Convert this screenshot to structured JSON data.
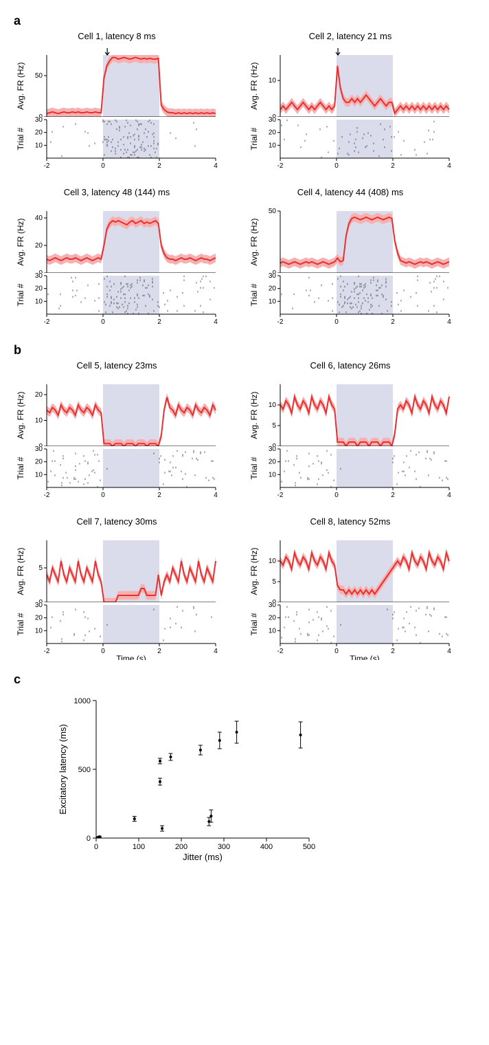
{
  "colors": {
    "line": "#e73030",
    "line_shade": "#f7b0b0",
    "stim": "#dadbeb",
    "raster": "#333333",
    "axis": "#000000",
    "grid": "#e0e0e0",
    "bg": "#ffffff"
  },
  "time_axis": {
    "xmin": -2,
    "xmax": 4,
    "ticks": [
      -2,
      0,
      2,
      4
    ]
  },
  "trials": {
    "ymin": 0,
    "ymax": 30,
    "ticks": [
      10,
      20,
      30
    ]
  },
  "stim_window": {
    "start": 0,
    "end": 2
  },
  "panel_a_label": "a",
  "panel_b_label": "b",
  "panel_c_label": "c",
  "xlabel_time": "Time (s)",
  "ylabel_fr": "Avg. FR (Hz)",
  "ylabel_trial": "Trial #",
  "cells_a": [
    {
      "title": "Cell 1, latency 8 ms",
      "ymax": 75,
      "yticks": [
        0,
        50
      ],
      "arrow_at": 0.15,
      "psth_y": [
        4,
        5,
        6,
        5,
        4,
        5,
        6,
        5,
        5,
        6,
        5,
        6,
        5,
        5,
        6,
        5,
        5,
        6,
        5,
        5,
        47,
        62,
        68,
        72,
        72,
        70,
        71,
        72,
        71,
        70,
        71,
        72,
        71,
        70,
        71,
        70,
        71,
        70,
        70,
        71,
        14,
        9,
        6,
        5,
        5,
        4,
        5,
        4,
        5,
        4,
        5,
        4,
        5,
        4,
        5,
        4,
        5,
        4,
        5,
        4
      ],
      "raster_density_pre": 0.06,
      "raster_density_stim": 0.95,
      "raster_density_post": 0.06
    },
    {
      "title": "Cell 2, latency 21 ms",
      "ymax": 17,
      "yticks": [
        0,
        10
      ],
      "arrow_at": 0.05,
      "psth_y": [
        2,
        3,
        2,
        3,
        4,
        3,
        2,
        3,
        4,
        3,
        2,
        3,
        2,
        3,
        4,
        3,
        2,
        3,
        2,
        3,
        14,
        8,
        5,
        4,
        4,
        5,
        4,
        5,
        4,
        5,
        6,
        5,
        4,
        3,
        4,
        5,
        4,
        3,
        4,
        4,
        1,
        2,
        3,
        2,
        3,
        2,
        3,
        2,
        3,
        2,
        3,
        2,
        3,
        2,
        3,
        2,
        3,
        2,
        3,
        2
      ],
      "raster_density_pre": 0.1,
      "raster_density_stim": 0.22,
      "raster_density_post": 0.1
    },
    {
      "title": "Cell 3, latency 48 (144) ms",
      "ymax": 45,
      "yticks": [
        0,
        20,
        40
      ],
      "psth_y": [
        10,
        9,
        10,
        11,
        10,
        9,
        10,
        11,
        10,
        10,
        11,
        10,
        9,
        10,
        11,
        10,
        9,
        10,
        11,
        10,
        20,
        32,
        36,
        38,
        37,
        38,
        37,
        36,
        35,
        37,
        38,
        36,
        37,
        38,
        36,
        37,
        36,
        37,
        38,
        36,
        20,
        14,
        11,
        10,
        10,
        9,
        10,
        11,
        10,
        10,
        11,
        10,
        9,
        10,
        11,
        10,
        10,
        9,
        10,
        11
      ],
      "raster_density_pre": 0.18,
      "raster_density_stim": 0.7,
      "raster_density_post": 0.18
    },
    {
      "title": "Cell 4, latency 44 (408) ms",
      "ymax": 50,
      "yticks": [
        0,
        50
      ],
      "psth_y": [
        8,
        9,
        8,
        7,
        8,
        9,
        8,
        7,
        8,
        9,
        8,
        9,
        8,
        7,
        8,
        9,
        8,
        7,
        8,
        9,
        12,
        9,
        10,
        30,
        40,
        44,
        45,
        44,
        43,
        44,
        45,
        44,
        43,
        44,
        45,
        44,
        43,
        44,
        45,
        44,
        26,
        16,
        10,
        9,
        8,
        9,
        8,
        7,
        8,
        9,
        8,
        9,
        8,
        7,
        8,
        9,
        8,
        7,
        8,
        9
      ],
      "raster_density_pre": 0.14,
      "raster_density_stim": 0.75,
      "raster_density_post": 0.14
    }
  ],
  "cells_b": [
    {
      "title": "Cell 5, latency 23ms",
      "ymax": 24,
      "yticks": [
        0,
        10,
        20
      ],
      "psth_y": [
        14,
        13,
        15,
        14,
        12,
        16,
        14,
        13,
        15,
        14,
        12,
        16,
        14,
        13,
        15,
        14,
        12,
        16,
        14,
        13,
        1,
        1,
        1,
        0,
        1,
        1,
        1,
        0,
        1,
        1,
        1,
        0,
        1,
        1,
        1,
        0,
        1,
        1,
        1,
        0,
        4,
        14,
        19,
        15,
        14,
        12,
        16,
        14,
        13,
        15,
        14,
        12,
        16,
        14,
        13,
        15,
        14,
        12,
        16,
        14
      ],
      "raster_density_pre": 0.32,
      "raster_density_stim": 0.03,
      "raster_density_post": 0.32
    },
    {
      "title": "Cell 6, latency 26ms",
      "ymax": 15,
      "yticks": [
        0,
        5,
        10
      ],
      "psth_y": [
        10,
        9,
        11,
        10,
        8,
        12,
        10,
        9,
        11,
        10,
        8,
        12,
        10,
        9,
        11,
        10,
        8,
        12,
        10,
        9,
        1,
        1,
        1,
        0,
        1,
        1,
        1,
        0,
        1,
        1,
        1,
        0,
        1,
        1,
        1,
        0,
        1,
        1,
        1,
        0,
        3,
        9,
        10,
        9,
        11,
        10,
        8,
        12,
        10,
        9,
        11,
        10,
        8,
        12,
        10,
        9,
        11,
        10,
        8,
        12
      ],
      "raster_density_pre": 0.25,
      "raster_density_stim": 0.02,
      "raster_density_post": 0.25
    },
    {
      "title": "Cell 7, latency 30ms",
      "ymax": 9,
      "yticks": [
        0,
        5
      ],
      "psth_y": [
        4,
        3,
        5,
        4,
        3,
        6,
        4,
        3,
        5,
        4,
        3,
        6,
        4,
        3,
        5,
        4,
        3,
        6,
        4,
        3,
        0,
        0,
        0,
        0,
        0,
        1,
        1,
        1,
        1,
        1,
        1,
        1,
        1,
        2,
        2,
        1,
        1,
        1,
        1,
        4,
        1,
        3,
        4,
        3,
        5,
        4,
        3,
        6,
        4,
        3,
        5,
        4,
        3,
        6,
        4,
        3,
        5,
        4,
        3,
        6
      ],
      "raster_density_pre": 0.12,
      "raster_density_stim": 0.03,
      "raster_density_post": 0.12
    },
    {
      "title": "Cell 8, latency 52ms",
      "ymax": 15,
      "yticks": [
        0,
        5,
        10
      ],
      "psth_y": [
        10,
        9,
        11,
        10,
        8,
        12,
        10,
        9,
        11,
        10,
        8,
        12,
        10,
        9,
        11,
        10,
        8,
        12,
        10,
        9,
        4,
        3,
        3,
        2,
        3,
        2,
        3,
        2,
        3,
        2,
        3,
        2,
        3,
        2,
        3,
        4,
        5,
        6,
        7,
        8,
        9,
        10,
        9,
        11,
        10,
        8,
        12,
        10,
        9,
        11,
        10,
        8,
        12,
        10,
        9,
        11,
        10,
        8,
        12,
        10
      ],
      "raster_density_pre": 0.25,
      "raster_density_stim": 0.04,
      "raster_density_post": 0.25
    }
  ],
  "scatter": {
    "xlabel": "Jitter (ms)",
    "ylabel": "Excitatory latency (ms)",
    "xlim": [
      0,
      500
    ],
    "xticks": [
      0,
      100,
      200,
      300,
      400,
      500
    ],
    "ylim": [
      0,
      1000
    ],
    "yticks": [
      0,
      500,
      1000
    ],
    "points": [
      {
        "x": 5,
        "y": 7,
        "err": 3
      },
      {
        "x": 8,
        "y": 10,
        "err": 4
      },
      {
        "x": 90,
        "y": 140,
        "err": 18
      },
      {
        "x": 150,
        "y": 410,
        "err": 25
      },
      {
        "x": 150,
        "y": 560,
        "err": 20
      },
      {
        "x": 155,
        "y": 70,
        "err": 20
      },
      {
        "x": 175,
        "y": 590,
        "err": 25
      },
      {
        "x": 245,
        "y": 640,
        "err": 35
      },
      {
        "x": 265,
        "y": 120,
        "err": 30
      },
      {
        "x": 270,
        "y": 160,
        "err": 45
      },
      {
        "x": 290,
        "y": 710,
        "err": 60
      },
      {
        "x": 330,
        "y": 770,
        "err": 80
      },
      {
        "x": 480,
        "y": 750,
        "err": 95
      }
    ]
  }
}
